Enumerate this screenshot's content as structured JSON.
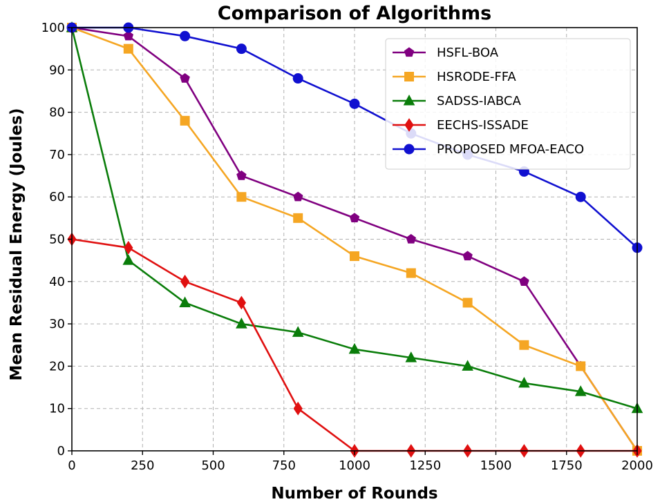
{
  "chart_data": {
    "type": "line",
    "title": "Comparison of Algorithms",
    "xlabel": "Number of Rounds",
    "ylabel": "Mean Residual Energy (Joules)",
    "xlim": [
      0,
      2000
    ],
    "ylim": [
      0,
      100
    ],
    "xticks": [
      0,
      250,
      500,
      750,
      1000,
      1250,
      1500,
      1750,
      2000
    ],
    "yticks": [
      0,
      10,
      20,
      30,
      40,
      50,
      60,
      70,
      80,
      90,
      100
    ],
    "grid": true,
    "legend_position": "top-right",
    "x": [
      0,
      200,
      400,
      600,
      800,
      1000,
      1200,
      1400,
      1600,
      1800,
      2000
    ],
    "series": [
      {
        "name": "HSFL-BOA",
        "color": "#800080",
        "marker": "pentagon",
        "values": [
          100,
          98,
          88,
          65,
          60,
          55,
          50,
          46,
          40,
          20,
          0
        ]
      },
      {
        "name": "HSRODE-FFA",
        "color": "#f5a623",
        "marker": "square",
        "values": [
          100,
          95,
          78,
          60,
          55,
          46,
          42,
          35,
          25,
          20,
          0
        ]
      },
      {
        "name": "SADSS-IABCA",
        "color": "#0a7d0a",
        "marker": "triangle",
        "values": [
          100,
          45,
          35,
          30,
          28,
          24,
          22,
          20,
          16,
          14,
          10
        ]
      },
      {
        "name": "EECHS-ISSADE",
        "color": "#e01010",
        "marker": "diamond",
        "values": [
          50,
          48,
          40,
          35,
          10,
          0,
          0,
          0,
          0,
          0,
          0
        ]
      },
      {
        "name": "PROPOSED MFOA-EACO",
        "color": "#1010d0",
        "marker": "circle",
        "values": [
          100,
          100,
          98,
          95,
          88,
          82,
          75,
          70,
          66,
          60,
          48
        ]
      }
    ]
  }
}
